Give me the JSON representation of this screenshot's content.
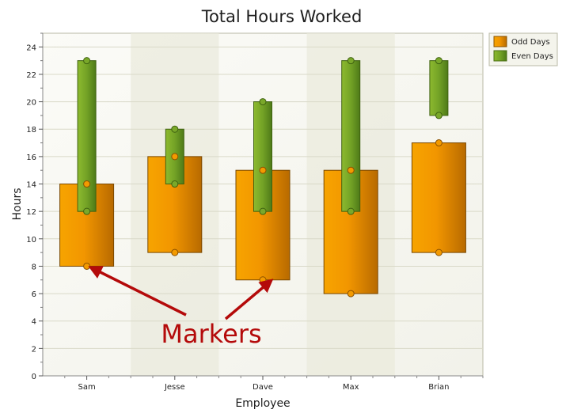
{
  "chart_data": {
    "type": "range-bar",
    "title": "Total Hours Worked",
    "xlabel": "Employee",
    "ylabel": "Hours",
    "categories": [
      "Sam",
      "Jesse",
      "Dave",
      "Max",
      "Brian"
    ],
    "ylim": [
      0,
      25
    ],
    "yticks": [
      0,
      2,
      4,
      6,
      8,
      10,
      12,
      14,
      16,
      18,
      20,
      22,
      24
    ],
    "grid": true,
    "legend_position": "top-right",
    "series": [
      {
        "name": "Odd Days",
        "color": "#f39a00",
        "ranges": [
          [
            8,
            14
          ],
          [
            9,
            16
          ],
          [
            7,
            15
          ],
          [
            6,
            15
          ],
          [
            9,
            17
          ]
        ]
      },
      {
        "name": "Even Days",
        "color": "#7aa82a",
        "ranges": [
          [
            12,
            23
          ],
          [
            14,
            18
          ],
          [
            12,
            20
          ],
          [
            12,
            23
          ],
          [
            19,
            23
          ]
        ]
      }
    ],
    "annotation": {
      "text": "Markers",
      "color": "#b40a0a",
      "targets": [
        {
          "category": "Sam",
          "value": 8
        },
        {
          "category": "Dave",
          "value": 7
        }
      ]
    }
  }
}
